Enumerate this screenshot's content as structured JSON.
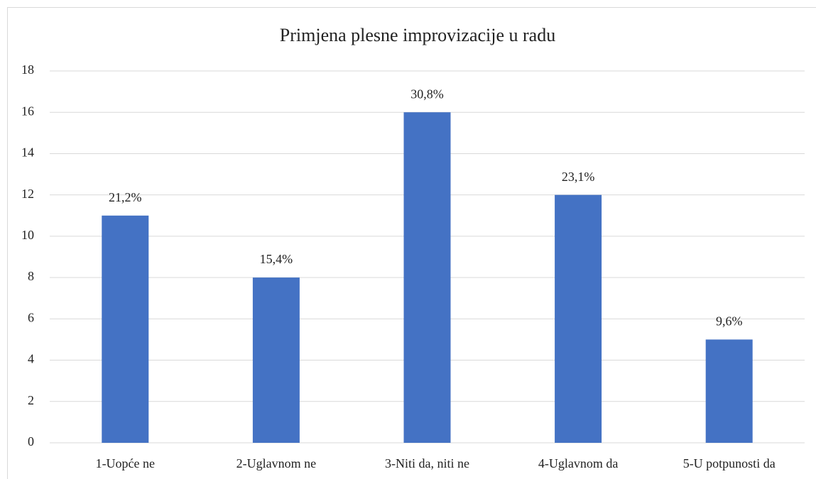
{
  "chart_data": {
    "type": "bar",
    "title": "Primjena plesne improvizacije u radu",
    "categories": [
      "1-Uopće ne",
      "2-Uglavnom ne",
      "3-Niti da, niti ne",
      "4-Uglavnom da",
      "5-U potpunosti da"
    ],
    "values": [
      11,
      8,
      16,
      12,
      5
    ],
    "value_labels": [
      "21,2%",
      "15,4%",
      "30,8%",
      "23,1%",
      "9,6%"
    ],
    "color": "#4472c4",
    "ylim": [
      0,
      18
    ],
    "yticks": [
      0,
      2,
      4,
      6,
      8,
      10,
      12,
      14,
      16,
      18
    ],
    "grid": true
  }
}
